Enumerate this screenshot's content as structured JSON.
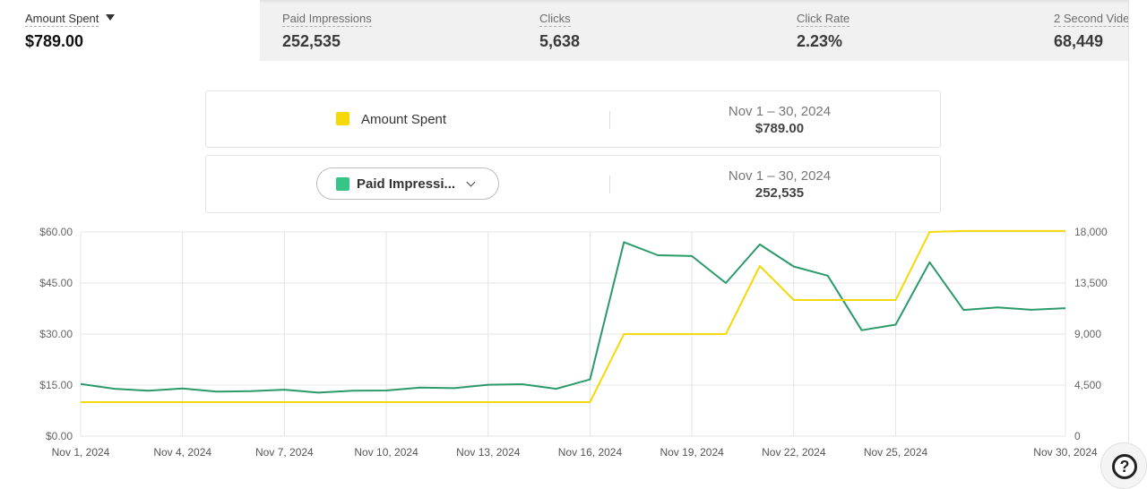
{
  "metrics": [
    {
      "label": "Amount Spent",
      "value": "$789.00"
    },
    {
      "label": "Paid Impressions",
      "value": "252,535"
    },
    {
      "label": "Clicks",
      "value": "5,638"
    },
    {
      "label": "Click Rate",
      "value": "2.23%"
    },
    {
      "label": "2 Second Vide",
      "value": "68,449"
    }
  ],
  "series_cards": [
    {
      "name": "Amount Spent",
      "range": "Nov 1 – 30, 2024",
      "total": "$789.00",
      "color": "#f5d90a"
    },
    {
      "name": "Paid Impressi...",
      "range": "Nov 1 – 30, 2024",
      "total": "252,535",
      "color": "#36c487"
    }
  ],
  "icons": {
    "dropdown": "caret-down-icon",
    "chevron": "chevron-down-icon",
    "help": "help-question-icon"
  },
  "chart_data": {
    "type": "line",
    "x": [
      "Nov 1",
      "Nov 2",
      "Nov 3",
      "Nov 4",
      "Nov 5",
      "Nov 6",
      "Nov 7",
      "Nov 8",
      "Nov 9",
      "Nov 10",
      "Nov 11",
      "Nov 12",
      "Nov 13",
      "Nov 14",
      "Nov 15",
      "Nov 16",
      "Nov 17",
      "Nov 18",
      "Nov 19",
      "Nov 20",
      "Nov 21",
      "Nov 22",
      "Nov 23",
      "Nov 24",
      "Nov 25",
      "Nov 26",
      "Nov 27",
      "Nov 28",
      "Nov 29",
      "Nov 30"
    ],
    "x_ticks": [
      "Nov 1, 2024",
      "Nov 4, 2024",
      "Nov 7, 2024",
      "Nov 10, 2024",
      "Nov 13, 2024",
      "Nov 16, 2024",
      "Nov 19, 2024",
      "Nov 22, 2024",
      "Nov 25, 2024",
      "Nov 30, 2024"
    ],
    "x_tick_index": [
      0,
      3,
      6,
      9,
      12,
      15,
      18,
      21,
      24,
      29
    ],
    "y_left_ticks": [
      "$0.00",
      "$15.00",
      "$30.00",
      "$45.00",
      "$60.00"
    ],
    "y_right_ticks": [
      "0",
      "4,500",
      "9,000",
      "13,500",
      "18,000"
    ],
    "y_left_lim": [
      0,
      60
    ],
    "y_right_lim": [
      0,
      18000
    ],
    "grid": true,
    "series": [
      {
        "name": "Amount Spent",
        "axis": "left",
        "color": "#f5d90a",
        "values": [
          10,
          10,
          10,
          10,
          10,
          10,
          10,
          10,
          10,
          10,
          10,
          10,
          10,
          10,
          10,
          10,
          30,
          30,
          30,
          30,
          50,
          40,
          40,
          40,
          40,
          60,
          60.3,
          60.3,
          60.3,
          60.3
        ]
      },
      {
        "name": "Paid Impressions",
        "axis": "right",
        "color": "#2a9a68",
        "values": [
          4600,
          4180,
          4000,
          4200,
          3920,
          3970,
          4100,
          3840,
          4000,
          4030,
          4290,
          4230,
          4530,
          4580,
          4180,
          5000,
          17100,
          15950,
          15880,
          13500,
          16900,
          14950,
          14150,
          9340,
          9830,
          15330,
          11120,
          11350,
          11140,
          11280
        ]
      }
    ]
  }
}
